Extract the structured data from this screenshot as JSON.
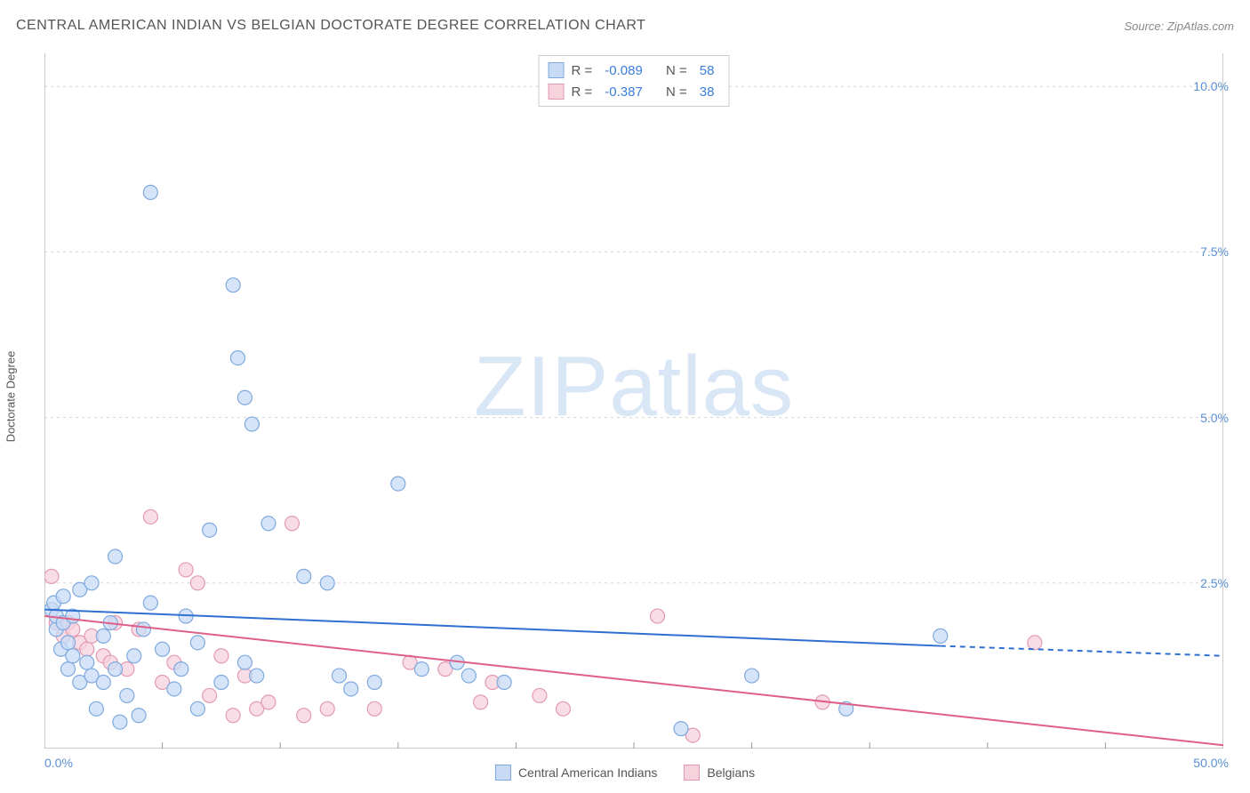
{
  "header": {
    "title": "CENTRAL AMERICAN INDIAN VS BELGIAN DOCTORATE DEGREE CORRELATION CHART",
    "source": "Source: ZipAtlas.com"
  },
  "watermark": {
    "zip": "ZIP",
    "atlas": "atlas"
  },
  "chart": {
    "type": "scatter",
    "ylabel": "Doctorate Degree",
    "xlim": [
      0,
      50
    ],
    "ylim": [
      0,
      10.5
    ],
    "x_min_label": "0.0%",
    "x_max_label": "50.0%",
    "y_ticks": [
      {
        "v": 2.5,
        "label": "2.5%"
      },
      {
        "v": 5.0,
        "label": "5.0%"
      },
      {
        "v": 7.5,
        "label": "7.5%"
      },
      {
        "v": 10.0,
        "label": "10.0%"
      }
    ],
    "x_ticks_minor": [
      5,
      10,
      15,
      20,
      25,
      30,
      35,
      40,
      45
    ],
    "grid_color": "#d5d5d5",
    "axis_color": "#999999",
    "background_color": "#ffffff",
    "label_color": "#5a8fd6",
    "marker_radius": 8,
    "marker_stroke_width": 1.2,
    "line_width": 2,
    "series": [
      {
        "id": "cai",
        "name": "Central American Indians",
        "fill": "#c7dbf5",
        "stroke": "#7fa9de",
        "line_color": "#2e6fd1",
        "R": "-0.089",
        "N": "58",
        "trend": {
          "x1": 0,
          "y1": 2.1,
          "x2": 38,
          "y2": 1.55,
          "ext_x2": 50,
          "ext_y2": 1.4
        },
        "points": [
          [
            0.3,
            2.1
          ],
          [
            0.4,
            2.2
          ],
          [
            0.5,
            1.8
          ],
          [
            0.5,
            2.0
          ],
          [
            0.7,
            1.5
          ],
          [
            0.8,
            2.3
          ],
          [
            0.8,
            1.9
          ],
          [
            1.0,
            1.6
          ],
          [
            1.0,
            1.2
          ],
          [
            1.2,
            1.4
          ],
          [
            1.2,
            2.0
          ],
          [
            1.5,
            1.0
          ],
          [
            1.5,
            2.4
          ],
          [
            1.8,
            1.3
          ],
          [
            2.0,
            1.1
          ],
          [
            2.0,
            2.5
          ],
          [
            2.2,
            0.6
          ],
          [
            2.5,
            1.7
          ],
          [
            2.5,
            1.0
          ],
          [
            2.8,
            1.9
          ],
          [
            3.0,
            2.9
          ],
          [
            3.0,
            1.2
          ],
          [
            3.2,
            0.4
          ],
          [
            3.5,
            0.8
          ],
          [
            3.8,
            1.4
          ],
          [
            4.0,
            0.5
          ],
          [
            4.2,
            1.8
          ],
          [
            4.5,
            2.2
          ],
          [
            4.5,
            8.4
          ],
          [
            5.0,
            1.5
          ],
          [
            5.5,
            0.9
          ],
          [
            5.8,
            1.2
          ],
          [
            6.0,
            2.0
          ],
          [
            6.5,
            1.6
          ],
          [
            7.0,
            3.3
          ],
          [
            7.5,
            1.0
          ],
          [
            8.0,
            7.0
          ],
          [
            8.2,
            5.9
          ],
          [
            8.5,
            5.3
          ],
          [
            8.5,
            1.3
          ],
          [
            8.8,
            4.9
          ],
          [
            9.0,
            1.1
          ],
          [
            9.5,
            3.4
          ],
          [
            11.0,
            2.6
          ],
          [
            12.0,
            2.5
          ],
          [
            12.5,
            1.1
          ],
          [
            13.0,
            0.9
          ],
          [
            14.0,
            1.0
          ],
          [
            15.0,
            4.0
          ],
          [
            16.0,
            1.2
          ],
          [
            17.5,
            1.3
          ],
          [
            18.0,
            1.1
          ],
          [
            19.5,
            1.0
          ],
          [
            27.0,
            0.3
          ],
          [
            30.0,
            1.1
          ],
          [
            38.0,
            1.7
          ],
          [
            34.0,
            0.6
          ],
          [
            6.5,
            0.6
          ]
        ]
      },
      {
        "id": "bel",
        "name": "Belgians",
        "fill": "#f6d2dd",
        "stroke": "#e39ab1",
        "line_color": "#de5f87",
        "R": "-0.387",
        "N": "38",
        "trend": {
          "x1": 0,
          "y1": 2.0,
          "x2": 50,
          "y2": 0.05
        },
        "points": [
          [
            0.3,
            2.6
          ],
          [
            0.5,
            1.9
          ],
          [
            0.8,
            1.7
          ],
          [
            1.0,
            1.9
          ],
          [
            1.2,
            1.8
          ],
          [
            1.5,
            1.6
          ],
          [
            1.8,
            1.5
          ],
          [
            2.0,
            1.7
          ],
          [
            2.5,
            1.4
          ],
          [
            2.8,
            1.3
          ],
          [
            3.0,
            1.9
          ],
          [
            3.5,
            1.2
          ],
          [
            4.0,
            1.8
          ],
          [
            4.5,
            3.5
          ],
          [
            5.0,
            1.0
          ],
          [
            5.5,
            1.3
          ],
          [
            6.0,
            2.7
          ],
          [
            6.5,
            2.5
          ],
          [
            7.0,
            0.8
          ],
          [
            7.5,
            1.4
          ],
          [
            8.0,
            0.5
          ],
          [
            8.5,
            1.1
          ],
          [
            9.0,
            0.6
          ],
          [
            9.5,
            0.7
          ],
          [
            10.5,
            3.4
          ],
          [
            11.0,
            0.5
          ],
          [
            12.0,
            0.6
          ],
          [
            14.0,
            0.6
          ],
          [
            15.5,
            1.3
          ],
          [
            17.0,
            1.2
          ],
          [
            18.5,
            0.7
          ],
          [
            19.0,
            1.0
          ],
          [
            21.0,
            0.8
          ],
          [
            22.0,
            0.6
          ],
          [
            26.0,
            2.0
          ],
          [
            27.5,
            0.2
          ],
          [
            33.0,
            0.7
          ],
          [
            42.0,
            1.6
          ]
        ]
      }
    ]
  },
  "stat_legend": {
    "R_label": "R =",
    "N_label": "N ="
  }
}
